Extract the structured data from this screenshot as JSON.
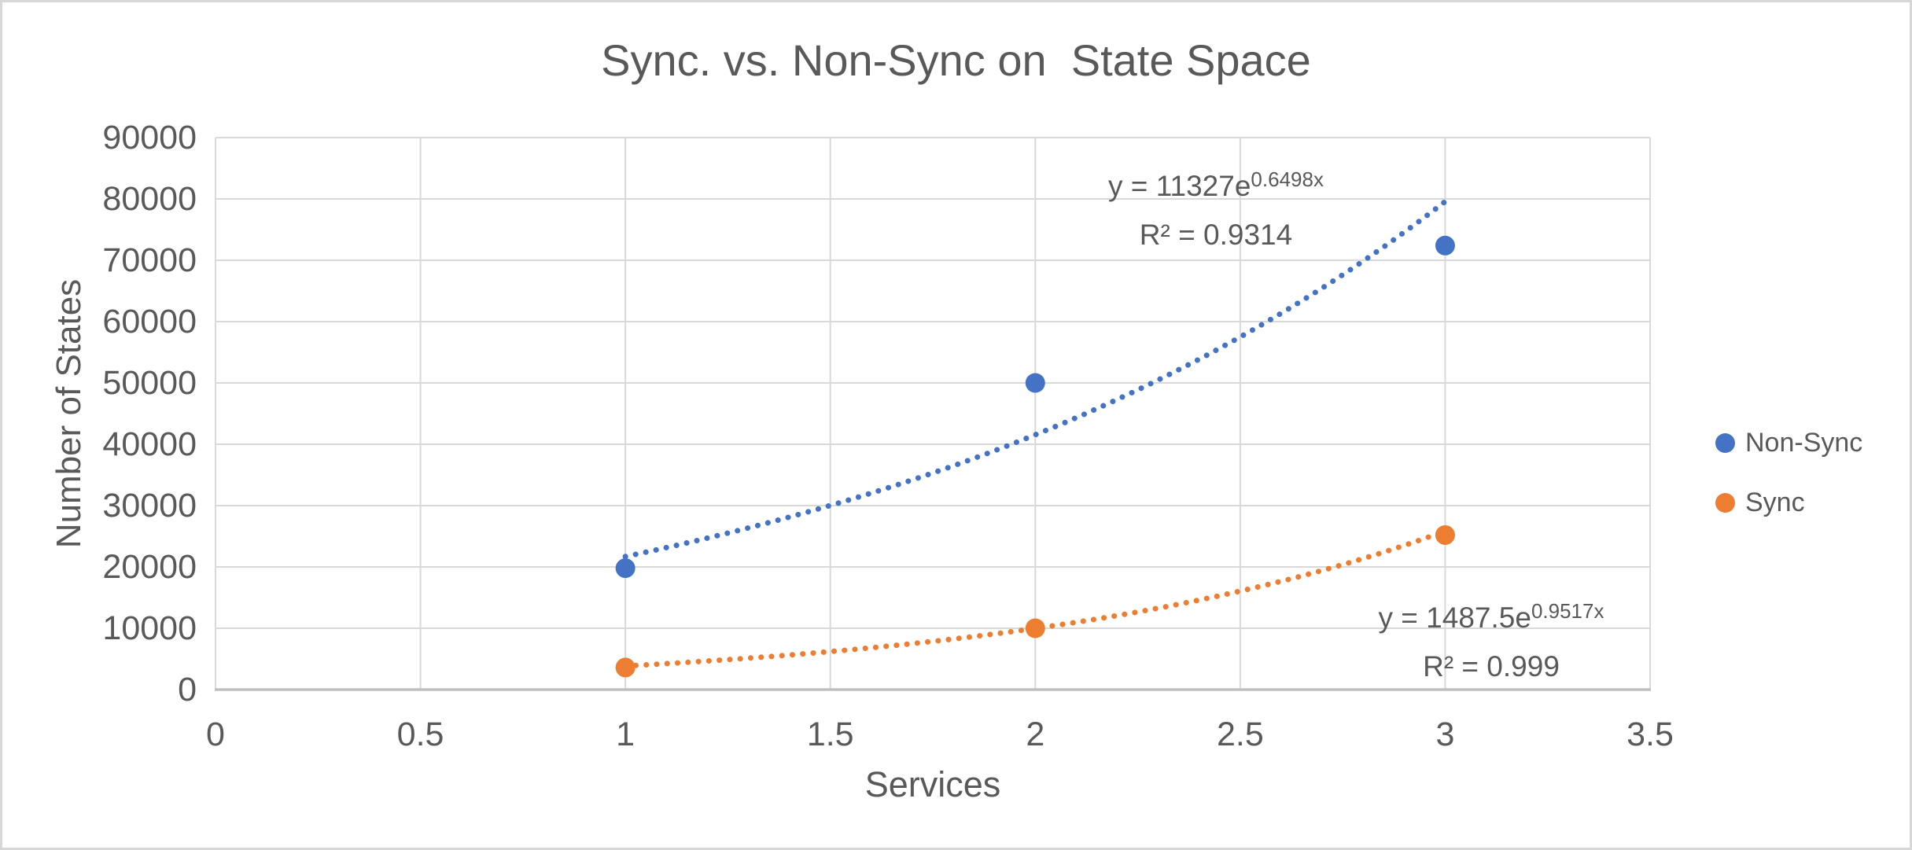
{
  "colors": {
    "text": "#595959",
    "gridline": "#D9D9D9",
    "axis_line": "#BFBFBF",
    "border": "#D7D7D7",
    "background": "#FFFFFF",
    "non_sync": "#4472C4",
    "sync": "#ED7D31"
  },
  "chart_data": {
    "type": "scatter",
    "title": "Sync. vs. Non-Sync on  State Space",
    "xlabel": "Services",
    "ylabel": "Number of States",
    "xlim": [
      0,
      3.5
    ],
    "ylim": [
      0,
      90000
    ],
    "xticks": [
      0,
      0.5,
      1,
      1.5,
      2,
      2.5,
      3,
      3.5
    ],
    "xtick_labels": [
      "0",
      "0.5",
      "1",
      "1.5",
      "2",
      "2.5",
      "3",
      "3.5"
    ],
    "yticks": [
      0,
      10000,
      20000,
      30000,
      40000,
      50000,
      60000,
      70000,
      80000,
      90000
    ],
    "ytick_labels": [
      "0",
      "10000",
      "20000",
      "30000",
      "40000",
      "50000",
      "60000",
      "70000",
      "80000",
      "90000"
    ],
    "grid": true,
    "legend_position": "right",
    "marker_style": "filled-circle",
    "trendline_style": "dotted",
    "series": [
      {
        "name": "Non-Sync",
        "color": "#4472C4",
        "x": [
          1,
          2,
          3
        ],
        "y": [
          19800,
          50000,
          72400
        ],
        "trendline": {
          "type": "exponential",
          "a": 11327,
          "b": 0.6498,
          "r2": 0.9314,
          "x_range": [
            1,
            3
          ],
          "eq_prefix": "y = 11327e",
          "eq_exponent": "0.6498x",
          "r2_label": "R² = 0.9314"
        }
      },
      {
        "name": "Sync",
        "color": "#ED7D31",
        "x": [
          1,
          2,
          3
        ],
        "y": [
          3600,
          10000,
          25200
        ],
        "trendline": {
          "type": "exponential",
          "a": 1487.5,
          "b": 0.9517,
          "r2": 0.999,
          "x_range": [
            1,
            3
          ],
          "eq_prefix": "y = 1487.5e",
          "eq_exponent": "0.9517x",
          "r2_label": "R² = 0.999"
        }
      }
    ]
  }
}
